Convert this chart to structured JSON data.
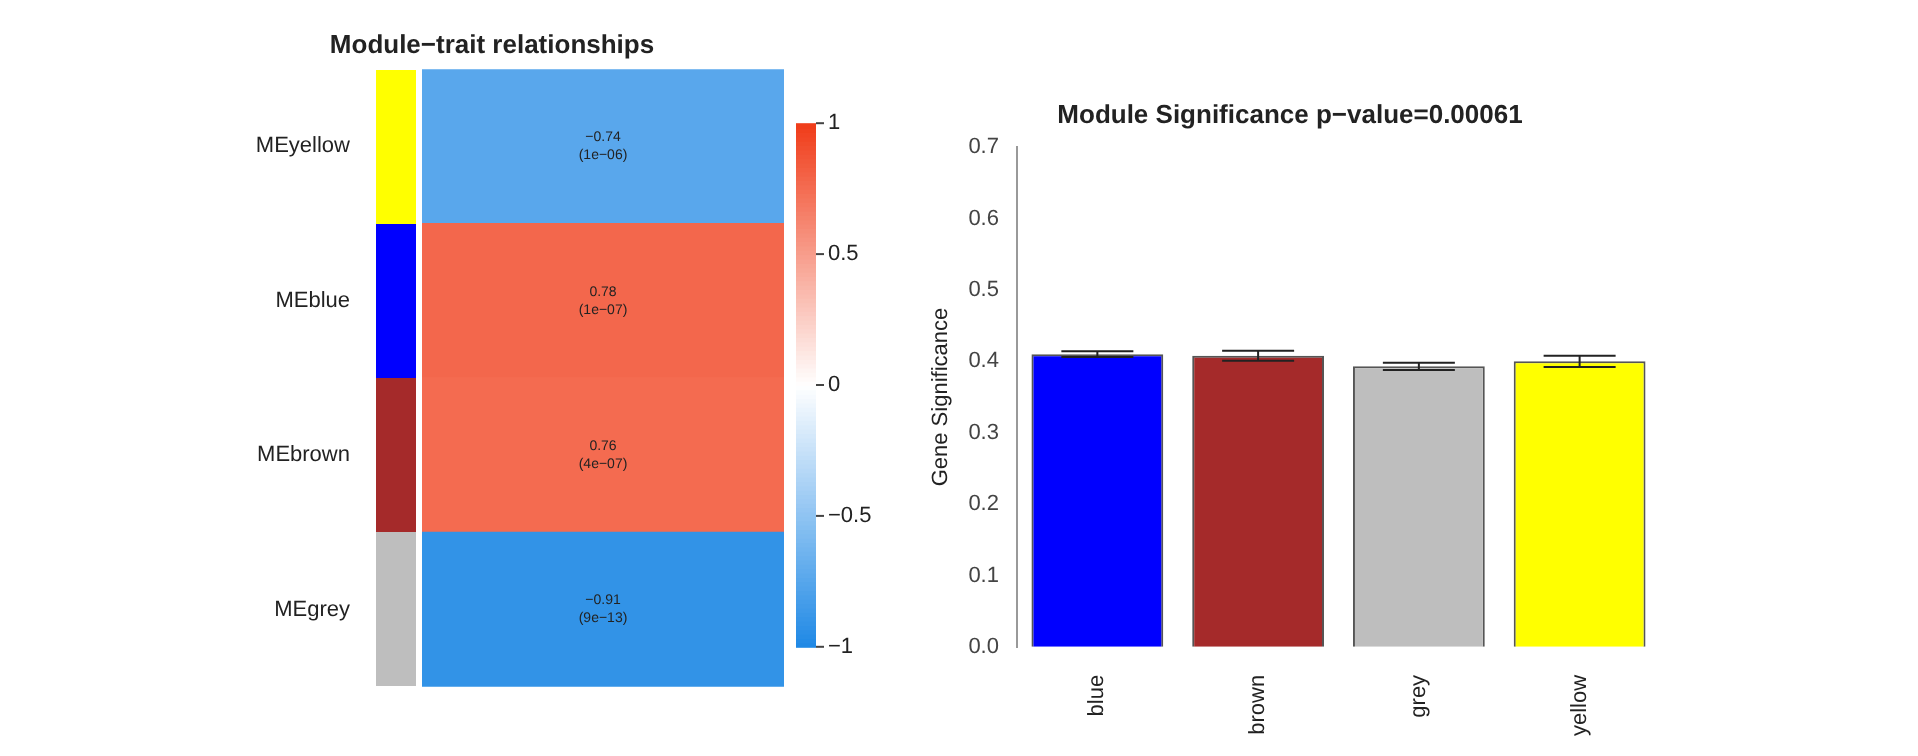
{
  "chart_data": [
    {
      "type": "heatmap",
      "title": "Module−trait relationships",
      "categories": [
        null
      ],
      "y_categories": [
        "MEyellow",
        "MEblue",
        "MEbrown",
        "MEgrey"
      ],
      "tick_labels": "y",
      "cells": [
        [
          -0.74
        ],
        [
          0.78
        ],
        [
          0.76
        ],
        [
          -0.91
        ]
      ],
      "cell_labels": [
        [
          "−0.74\n(1e−06)"
        ],
        [
          "0.78\n(1e−07)"
        ],
        [
          "0.76\n(4e−07)"
        ],
        [
          "−0.91\n(9e−13)"
        ]
      ],
      "clim": [
        -1,
        1
      ],
      "cticks": [
        -1,
        -0.5,
        0,
        0.5,
        1
      ]
    },
    {
      "type": "bar",
      "title": "Module Significance p−value=0.00061",
      "ylabel": "Gene Significance",
      "categories": [
        "blue",
        "brown",
        "grey",
        "yellow"
      ],
      "values": [
        0.41,
        0.408,
        0.393,
        0.4
      ],
      "colors": [
        "#0000ff",
        "#a52a2a",
        "#bebebe",
        "#ffff00"
      ],
      "errors": [
        0.004,
        0.007,
        0.005,
        0.008
      ],
      "ylim": [
        0,
        0.7
      ],
      "yticks": [
        {
          "value": 0,
          "label": "0.0"
        },
        0.1,
        0.2,
        0.3,
        0.4,
        0.5,
        0.6,
        0.7
      ],
      "grid": false,
      "legend": false
    }
  ]
}
